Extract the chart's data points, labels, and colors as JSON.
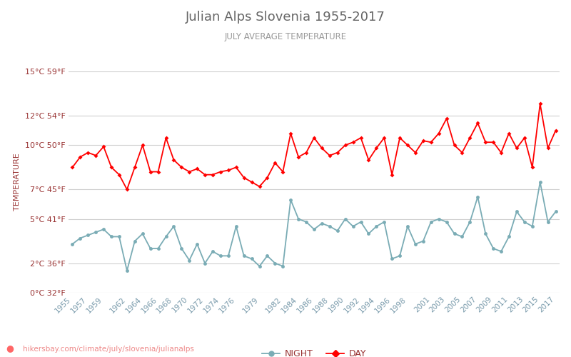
{
  "title": "Julian Alps Slovenia 1955-2017",
  "subtitle": "JULY AVERAGE TEMPERATURE",
  "ylabel": "TEMPERATURE",
  "watermark": "hikersbay.com/climate/july/slovenia/julianalps",
  "years": [
    1955,
    1956,
    1957,
    1958,
    1959,
    1960,
    1961,
    1962,
    1963,
    1964,
    1965,
    1966,
    1967,
    1968,
    1969,
    1970,
    1971,
    1972,
    1973,
    1974,
    1975,
    1976,
    1977,
    1978,
    1979,
    1980,
    1981,
    1982,
    1983,
    1984,
    1985,
    1986,
    1987,
    1988,
    1989,
    1990,
    1991,
    1992,
    1993,
    1994,
    1995,
    1996,
    1997,
    1998,
    1999,
    2000,
    2001,
    2002,
    2003,
    2004,
    2005,
    2006,
    2007,
    2008,
    2009,
    2010,
    2011,
    2012,
    2013,
    2014,
    2015,
    2016,
    2017
  ],
  "day_temps": [
    8.5,
    9.2,
    9.5,
    9.3,
    9.9,
    8.5,
    8.0,
    7.0,
    8.5,
    10.0,
    8.2,
    8.2,
    10.5,
    9.0,
    8.5,
    8.2,
    8.4,
    8.0,
    8.0,
    8.2,
    8.3,
    8.5,
    7.8,
    7.5,
    7.2,
    7.8,
    8.8,
    8.2,
    10.8,
    9.2,
    9.5,
    10.5,
    9.8,
    9.3,
    9.5,
    10.0,
    10.2,
    10.5,
    9.0,
    9.8,
    10.5,
    8.0,
    10.5,
    10.0,
    9.5,
    10.3,
    10.2,
    10.8,
    11.8,
    10.0,
    9.5,
    10.5,
    11.5,
    10.2,
    10.2,
    9.5,
    10.8,
    9.8,
    10.5,
    8.5,
    12.8,
    9.8,
    11.0
  ],
  "night_temps": [
    3.3,
    3.7,
    3.9,
    4.1,
    4.3,
    3.8,
    3.8,
    1.5,
    3.5,
    4.0,
    3.0,
    3.0,
    3.8,
    4.5,
    3.0,
    2.2,
    3.3,
    2.0,
    2.8,
    2.5,
    2.5,
    4.5,
    2.5,
    2.3,
    1.8,
    2.5,
    2.0,
    1.8,
    6.3,
    5.0,
    4.8,
    4.3,
    4.7,
    4.5,
    4.2,
    5.0,
    4.5,
    4.8,
    4.0,
    4.5,
    4.8,
    2.3,
    2.5,
    4.5,
    3.3,
    3.5,
    4.8,
    5.0,
    4.8,
    4.0,
    3.8,
    4.8,
    6.5,
    4.0,
    3.0,
    2.8,
    3.8,
    5.5,
    4.8,
    4.5,
    7.5,
    4.8,
    5.5
  ],
  "xtick_labels": [
    1955,
    1957,
    1959,
    1962,
    1964,
    1966,
    1968,
    1970,
    1972,
    1974,
    1976,
    1979,
    1982,
    1984,
    1986,
    1988,
    1990,
    1992,
    1994,
    1996,
    1998,
    2001,
    2003,
    2005,
    2007,
    2009,
    2011,
    2013,
    2015,
    2017
  ],
  "ylim": [
    0,
    15
  ],
  "yticks_c": [
    0,
    2,
    5,
    7,
    10,
    12,
    15
  ],
  "yticks_f": [
    32,
    36,
    41,
    45,
    50,
    54,
    59
  ],
  "day_color": "#ff0000",
  "night_color": "#7aacb5",
  "bg_color": "#ffffff",
  "grid_color": "#d0d0d0",
  "title_color": "#666666",
  "subtitle_color": "#999999",
  "label_color": "#993333",
  "tick_color": "#7799aa",
  "watermark_color": "#ee8888",
  "watermark_icon_color": "#ff6666"
}
